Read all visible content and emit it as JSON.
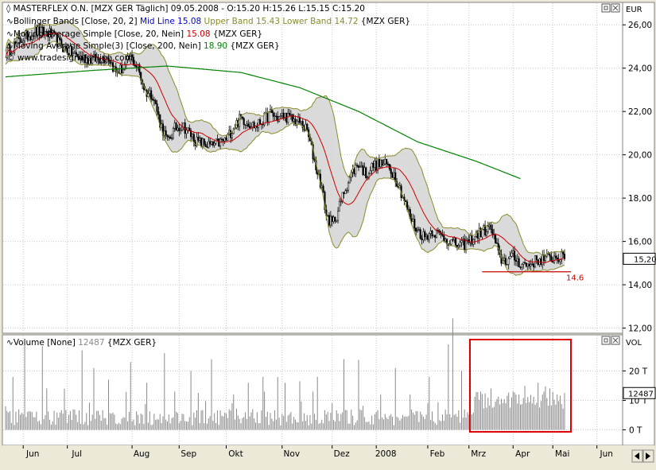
{
  "header": {
    "title_line": "MASTERFLEX O.N. [MZX GER  Täglich] 09.05.2008 - O:15.20 H:15.26 L:15.15 C:15.20",
    "bb_label": "Bollinger Bands [Close, 20, 2]",
    "bb_mid": "Mid Line 15.08",
    "bb_upper": "Upper Band 15.43",
    "bb_lower": "Lower Band 14.72",
    "bb_tail": "{MZX GER}",
    "sma20_label": "Moving Average Simple [Close, 20, Nein]",
    "sma20_value": "15.08",
    "sma20_tail": "{MZX GER}",
    "sma200_label": "Moving Average Simple(3) [Close, 200, Nein]",
    "sma200_value": "18.90",
    "sma200_tail": "{MZX GER}",
    "watermark": "www.tradesignalonline.com"
  },
  "volume_header": {
    "label": "Volume [None]",
    "value": "12487",
    "tail": "{MZX GER}"
  },
  "axis": {
    "price_unit": "EUR",
    "volume_unit": "VOL",
    "price_ticks": [
      "26,00",
      "24,00",
      "22,00",
      "20,00",
      "18,00",
      "16,00",
      "14,00",
      "12,00"
    ],
    "price_tick_values": [
      26,
      24,
      22,
      20,
      18,
      16,
      14,
      12
    ],
    "last_price_tag": "15,20",
    "last_volume_tag": "12487",
    "volume_ticks": [
      "20 T",
      "10 T",
      "0 T"
    ],
    "volume_tick_values": [
      20000,
      10000,
      0
    ],
    "months": [
      "Jun",
      "Jul",
      "Aug",
      "Sep",
      "Okt",
      "Nov",
      "Dez",
      "2008",
      "Feb",
      "Mrz",
      "Apr",
      "Mai",
      "Jun"
    ]
  },
  "support_label": "14.6",
  "colors": {
    "candles": "#000000",
    "bb_bands": "#8b8b2a",
    "bb_fill": "#d4d4d4",
    "sma20": "#cc0000",
    "sma200": "#008000",
    "support": "#cc0000",
    "highlight_box": "#dd0000",
    "volume": "#888888",
    "blue_text": "#0000cc",
    "olive_text": "#8b8b2a"
  },
  "chart_data": {
    "type": "candlestick",
    "ylim": [
      11.8,
      27
    ],
    "volume_ylim": [
      -5000,
      32000
    ],
    "support_level": 14.6,
    "price_path": [
      [
        0,
        24.7
      ],
      [
        10,
        25.3
      ],
      [
        20,
        25.7
      ],
      [
        30,
        25.6
      ],
      [
        40,
        24.9
      ],
      [
        50,
        24.5
      ],
      [
        60,
        24.4
      ],
      [
        70,
        24.5
      ],
      [
        75,
        23.8
      ],
      [
        80,
        24.0
      ],
      [
        85,
        24.5
      ],
      [
        90,
        24.0
      ],
      [
        95,
        22.9
      ],
      [
        100,
        22.8
      ],
      [
        105,
        21.5
      ],
      [
        110,
        20.6
      ],
      [
        115,
        21.2
      ],
      [
        120,
        21.4
      ],
      [
        130,
        20.6
      ],
      [
        140,
        20.4
      ],
      [
        150,
        20.7
      ],
      [
        155,
        21.3
      ],
      [
        160,
        21.7
      ],
      [
        170,
        21.3
      ],
      [
        175,
        21.6
      ],
      [
        180,
        21.9
      ],
      [
        185,
        21.7
      ],
      [
        190,
        21.8
      ],
      [
        195,
        21.6
      ],
      [
        200,
        21.5
      ],
      [
        205,
        21.1
      ],
      [
        210,
        19.7
      ],
      [
        215,
        18.5
      ],
      [
        218,
        17.2
      ],
      [
        222,
        16.8
      ],
      [
        226,
        17.4
      ],
      [
        230,
        18.3
      ],
      [
        235,
        19.1
      ],
      [
        240,
        19.6
      ],
      [
        245,
        19.1
      ],
      [
        250,
        19.5
      ],
      [
        255,
        19.6
      ],
      [
        260,
        19.5
      ],
      [
        265,
        19.0
      ],
      [
        270,
        18.1
      ],
      [
        275,
        17.1
      ],
      [
        280,
        16.5
      ],
      [
        285,
        16.2
      ],
      [
        290,
        16.5
      ],
      [
        295,
        16.3
      ],
      [
        300,
        16.1
      ],
      [
        305,
        15.9
      ],
      [
        310,
        15.8
      ],
      [
        315,
        16.0
      ],
      [
        320,
        16.3
      ],
      [
        325,
        16.5
      ],
      [
        330,
        16.6
      ],
      [
        333,
        15.9
      ],
      [
        336,
        15.2
      ],
      [
        340,
        15.1
      ],
      [
        345,
        15.3
      ],
      [
        350,
        15.0
      ],
      [
        355,
        14.9
      ],
      [
        360,
        15.1
      ],
      [
        365,
        15.2
      ],
      [
        370,
        15.2
      ],
      [
        375,
        15.3
      ],
      [
        380,
        15.2
      ]
    ],
    "sma200_path": [
      [
        0,
        23.6
      ],
      [
        60,
        23.9
      ],
      [
        110,
        24.1
      ],
      [
        160,
        23.8
      ],
      [
        200,
        23.1
      ],
      [
        240,
        22.0
      ],
      [
        280,
        20.6
      ],
      [
        320,
        19.7
      ],
      [
        350,
        18.9
      ]
    ],
    "volume_events": [
      [
        0,
        8000
      ],
      [
        5,
        18000
      ],
      [
        13,
        30000
      ],
      [
        25,
        24000
      ],
      [
        40,
        14000
      ],
      [
        52,
        27000
      ],
      [
        60,
        21000
      ],
      [
        70,
        17000
      ],
      [
        85,
        23000
      ],
      [
        96,
        16000
      ],
      [
        108,
        26000
      ],
      [
        115,
        13000
      ],
      [
        126,
        20000
      ],
      [
        140,
        24000
      ],
      [
        155,
        12000
      ],
      [
        165,
        16000
      ],
      [
        175,
        18000
      ],
      [
        185,
        11000
      ],
      [
        190,
        16000
      ],
      [
        200,
        14000
      ],
      [
        209,
        13000
      ],
      [
        212,
        18000
      ],
      [
        222,
        9000
      ],
      [
        230,
        24000
      ],
      [
        240,
        21000
      ],
      [
        255,
        12000
      ],
      [
        265,
        21000
      ],
      [
        275,
        12000
      ],
      [
        288,
        18000
      ],
      [
        301,
        29000
      ],
      [
        304,
        31000
      ],
      [
        310,
        20000
      ],
      [
        316,
        18000
      ],
      [
        323,
        13000
      ],
      [
        330,
        14000
      ],
      [
        340,
        9000
      ],
      [
        345,
        13000
      ],
      [
        352,
        9000
      ],
      [
        362,
        16000
      ],
      [
        366,
        13000
      ],
      [
        370,
        14000
      ],
      [
        375,
        12000
      ],
      [
        380,
        12500
      ]
    ]
  }
}
